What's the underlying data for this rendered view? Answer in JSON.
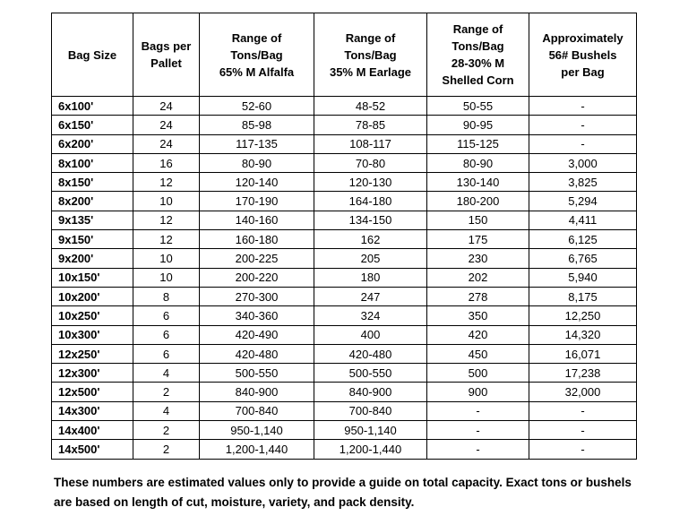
{
  "table": {
    "headers": [
      [
        "Bag Size"
      ],
      [
        "Bags per",
        "Pallet"
      ],
      [
        "Range of",
        "Tons/Bag",
        "65% M Alfalfa"
      ],
      [
        "Range of",
        "Tons/Bag",
        "35% M Earlage"
      ],
      [
        "Range of",
        "Tons/Bag",
        "28-30% M",
        "Shelled Corn"
      ],
      [
        "Approximately",
        "56# Bushels",
        "per Bag"
      ]
    ],
    "rows": [
      [
        "6x100'",
        "24",
        "52-60",
        "48-52",
        "50-55",
        "-"
      ],
      [
        "6x150'",
        "24",
        "85-98",
        "78-85",
        "90-95",
        "-"
      ],
      [
        "6x200'",
        "24",
        "117-135",
        "108-117",
        "115-125",
        "-"
      ],
      [
        "8x100'",
        "16",
        "80-90",
        "70-80",
        "80-90",
        "3,000"
      ],
      [
        "8x150'",
        "12",
        "120-140",
        "120-130",
        "130-140",
        "3,825"
      ],
      [
        "8x200'",
        "10",
        "170-190",
        "164-180",
        "180-200",
        "5,294"
      ],
      [
        "9x135'",
        "12",
        "140-160",
        "134-150",
        "150",
        "4,411"
      ],
      [
        "9x150'",
        "12",
        "160-180",
        "162",
        "175",
        "6,125"
      ],
      [
        "9x200'",
        "10",
        "200-225",
        "205",
        "230",
        "6,765"
      ],
      [
        "10x150'",
        "10",
        "200-220",
        "180",
        "202",
        "5,940"
      ],
      [
        "10x200'",
        "8",
        "270-300",
        "247",
        "278",
        "8,175"
      ],
      [
        "10x250'",
        "6",
        "340-360",
        "324",
        "350",
        "12,250"
      ],
      [
        "10x300'",
        "6",
        "420-490",
        "400",
        "420",
        "14,320"
      ],
      [
        "12x250'",
        "6",
        "420-480",
        "420-480",
        "450",
        "16,071"
      ],
      [
        "12x300'",
        "4",
        "500-550",
        "500-550",
        "500",
        "17,238"
      ],
      [
        "12x500'",
        "2",
        "840-900",
        "840-900",
        "900",
        "32,000"
      ],
      [
        "14x300'",
        "4",
        "700-840",
        "700-840",
        "-",
        "-"
      ],
      [
        "14x400'",
        "2",
        "950-1,140",
        "950-1,140",
        "-",
        "-"
      ],
      [
        "14x500'",
        "2",
        "1,200-1,440",
        "1,200-1,440",
        "-",
        "-"
      ]
    ]
  },
  "footnote": [
    "These numbers are estimated values only to provide a guide on total capacity. Exact tons or bushels",
    "are based on length of cut, moisture, variety, and pack density."
  ]
}
